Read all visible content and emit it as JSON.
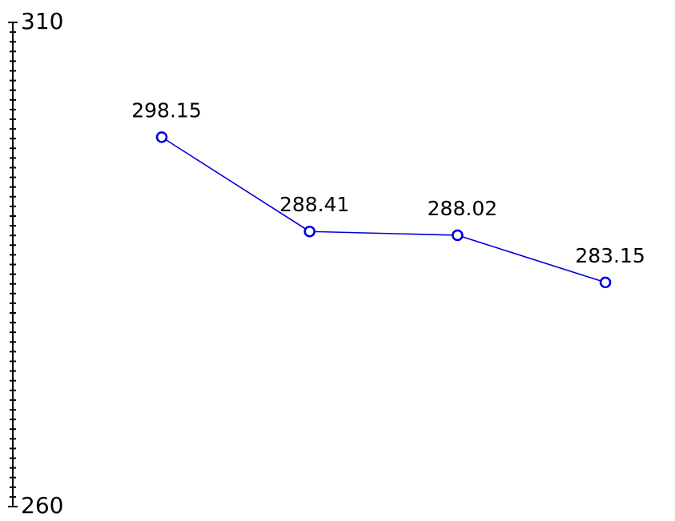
{
  "chart_data": {
    "type": "line",
    "categories": [
      null,
      null,
      null,
      null
    ],
    "series": [
      {
        "color": "#0000dd",
        "values": [
          298.15,
          288.41,
          288.02,
          283.15
        ]
      }
    ],
    "ylim": [
      260,
      310
    ],
    "yticks": [
      260,
      310
    ]
  }
}
